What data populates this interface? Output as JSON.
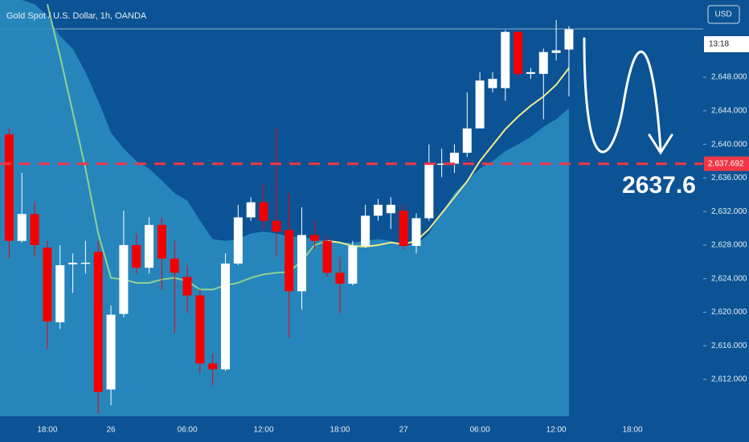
{
  "chart_data": {
    "type": "candlestick",
    "title": "Gold Spot / U.S. Dollar, 1h, OANDA",
    "currency": "USD",
    "countdown": "13:18",
    "annotation": "2637.6",
    "categories": [
      null,
      null,
      null,
      "18:00",
      null,
      null,
      null,
      null,
      "26",
      null,
      null,
      null,
      null,
      null,
      "06:00",
      null,
      null,
      null,
      null,
      null,
      "12:00",
      null,
      null,
      null,
      null,
      null,
      "18:00",
      null,
      null,
      null,
      null,
      "27",
      null,
      null,
      null,
      null,
      null,
      "06:00",
      null,
      null,
      null,
      null,
      null,
      "12:00",
      null,
      null,
      null,
      null,
      null,
      "18:00",
      null,
      null,
      null
    ],
    "open": [
      2641.2,
      2628.5,
      2631.7,
      2627.7,
      2618.8,
      2625.7,
      2625.9,
      2627.2,
      2610.8,
      2619.8,
      2628.0,
      2625.3,
      2630.4,
      2626.4,
      2624.2,
      2622.0,
      2613.9,
      2613.2,
      2625.8,
      2631.3,
      2633.1,
      2630.9,
      2629.8,
      2622.5,
      2629.2,
      2628.5,
      2624.7,
      2623.4,
      2627.9,
      2631.5,
      2631.8,
      2632.1,
      2627.9,
      2631.2,
      2637.6,
      2637.7,
      2639.0,
      2641.9,
      2646.7,
      2646.7,
      2653.4,
      2648.4,
      2648.4,
      2650.9,
      2651.3,
      null,
      null,
      null,
      null,
      null,
      null,
      null,
      null
    ],
    "high": [
      2641.9,
      2636.6,
      2633.2,
      2628.5,
      2628.0,
      2627.0,
      2628.5,
      2628.5,
      2620.8,
      2632.1,
      2629.4,
      2631.3,
      2631.3,
      2628.5,
      2625.6,
      2622.7,
      2615.1,
      2627.0,
      2632.8,
      2633.7,
      2635.2,
      2641.9,
      2634.2,
      2632.5,
      2630.9,
      2629.0,
      2626.6,
      2628.5,
      2632.8,
      2633.5,
      2633.7,
      2632.8,
      2631.8,
      2640.0,
      2639.5,
      2640.0,
      2646.2,
      2648.6,
      2648.6,
      2653.6,
      2653.6,
      2649.1,
      2651.4,
      2654.8,
      2654.1,
      null,
      null,
      null,
      null,
      null,
      null,
      null,
      null
    ],
    "low": [
      2626.4,
      2628.3,
      2626.6,
      2615.6,
      2618.0,
      2622.3,
      2624.6,
      2607.9,
      2608.9,
      2619.4,
      2624.6,
      2624.6,
      2622.7,
      2617.5,
      2619.9,
      2612.7,
      2611.3,
      2613.0,
      2625.6,
      2630.9,
      2629.9,
      2626.6,
      2617.0,
      2620.3,
      2627.5,
      2624.2,
      2619.9,
      2623.2,
      2627.7,
      2630.9,
      2629.9,
      2627.5,
      2627.0,
      2630.9,
      2636.1,
      2636.6,
      2638.5,
      2641.9,
      2646.2,
      2645.2,
      2648.1,
      2647.8,
      2643.0,
      2650.0,
      2645.7,
      null,
      null,
      null,
      null,
      null,
      null,
      null,
      null
    ],
    "close": [
      2628.5,
      2631.7,
      2628.0,
      2618.9,
      2625.6,
      2625.9,
      2625.9,
      2610.5,
      2619.7,
      2628.0,
      2625.3,
      2630.4,
      2626.4,
      2624.7,
      2622.0,
      2613.9,
      2613.2,
      2625.8,
      2631.3,
      2633.1,
      2630.9,
      2629.6,
      2622.5,
      2629.2,
      2628.5,
      2624.7,
      2623.4,
      2627.9,
      2631.5,
      2632.8,
      2632.8,
      2627.9,
      2631.2,
      2637.6,
      2637.7,
      2639.0,
      2641.9,
      2647.6,
      2647.8,
      2653.4,
      2648.4,
      2648.6,
      2651.0,
      2651.2,
      2653.7,
      null,
      null,
      null,
      null,
      null,
      null,
      null,
      null
    ],
    "up_color": "#ffffff",
    "down_color": "#f20000",
    "area": {
      "color": "#2b8fc3",
      "values": [
        2657.2,
        2657.2,
        2656.7,
        2655.3,
        2652.9,
        2651.4,
        2648.6,
        2645.2,
        2641.4,
        2639.5,
        2638.0,
        2637.1,
        2635.7,
        2634.2,
        2633.3,
        2630.9,
        2628.7,
        2628.5,
        2628.7,
        2629.4,
        2629.6,
        2629.4,
        2629.0,
        2629.0,
        2628.7,
        2628.5,
        2628.3,
        2628.3,
        2628.5,
        2628.7,
        2628.5,
        2628.0,
        2628.0,
        2629.4,
        2631.8,
        2634.2,
        2635.7,
        2637.1,
        2638.0,
        2639.2,
        2640.0,
        2640.9,
        2642.1,
        2643.0,
        2644.3,
        null,
        null,
        null,
        null,
        null,
        null,
        null,
        null
      ]
    },
    "lines": [
      {
        "color": "#8fd18f",
        "values": [
          null,
          null,
          null,
          2656.7,
          2650.5,
          2643.8,
          2637.1,
          2629.4,
          2624.1,
          2623.9,
          2623.5,
          2623.5,
          2623.9,
          2624.1,
          2623.7,
          2622.7,
          2622.7,
          2623.2,
          2623.5,
          2624.1,
          2624.5,
          2624.7,
          2624.8,
          2626.1,
          2628.0,
          2628.5,
          2628.3,
          null,
          null,
          null,
          null,
          null,
          null,
          null,
          null,
          null,
          null,
          null,
          null,
          null,
          null,
          null,
          null,
          null,
          null,
          null,
          null,
          null,
          null,
          null,
          null,
          null,
          null
        ]
      },
      {
        "color": "#f3e98a",
        "values": [
          null,
          null,
          null,
          null,
          null,
          null,
          null,
          null,
          null,
          null,
          null,
          null,
          null,
          null,
          null,
          null,
          null,
          null,
          null,
          null,
          null,
          null,
          null,
          null,
          null,
          2628.5,
          2628.3,
          2627.9,
          2627.8,
          2628.0,
          2628.3,
          2628.1,
          2628.5,
          2629.9,
          2631.8,
          2633.7,
          2635.6,
          2638.0,
          2639.9,
          2641.8,
          2643.3,
          2644.6,
          2645.7,
          2647.1,
          2649.1,
          null,
          null,
          null,
          null,
          null,
          null,
          null,
          null
        ]
      }
    ],
    "hline": {
      "value": 2637.692,
      "label": "2,637.692",
      "color": "#f23645"
    },
    "ylim": [
      2607.6,
      2657.2
    ],
    "yticks": [
      {
        "value": 2612,
        "label": "2,612.000"
      },
      {
        "value": 2616,
        "label": "2,616.000"
      },
      {
        "value": 2620,
        "label": "2,620.000"
      },
      {
        "value": 2624,
        "label": "2,624.000"
      },
      {
        "value": 2628,
        "label": "2,628.000"
      },
      {
        "value": 2632,
        "label": "2,632.000"
      },
      {
        "value": 2636,
        "label": "2,636.000"
      },
      {
        "value": 2640,
        "label": "2,640.000"
      },
      {
        "value": 2644,
        "label": "2,644.000"
      },
      {
        "value": 2648,
        "label": "2,648.000"
      }
    ]
  }
}
